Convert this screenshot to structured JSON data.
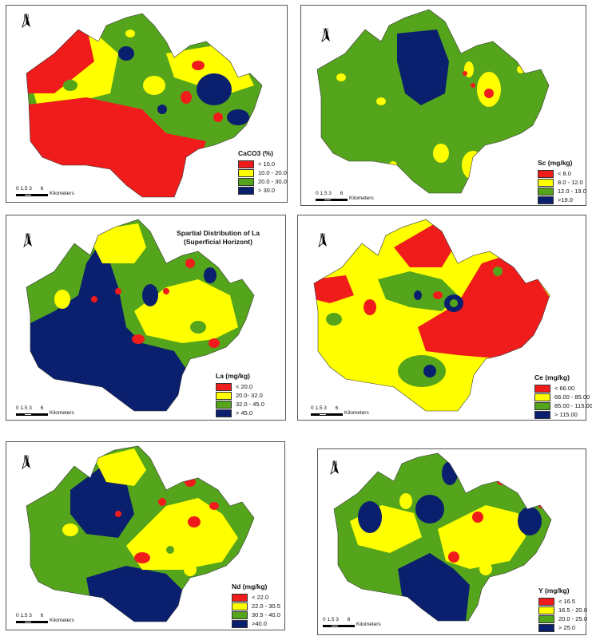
{
  "colors": {
    "red": "#f01c1c",
    "yellow": "#ffff00",
    "green": "#55a51c",
    "blue": "#0a1f6e"
  },
  "north_label": "N",
  "scale_bar": {
    "ticks": [
      "0",
      "1.5",
      "3",
      "6"
    ],
    "unit": "Kilometers"
  },
  "panels": [
    {
      "id": "caco3",
      "title": "",
      "legend_title": "CaCO3 (%)",
      "classes": [
        {
          "label": "< 10.0",
          "color": "#f01c1c"
        },
        {
          "label": "10.0 - 20.0",
          "color": "#ffff00"
        },
        {
          "label": "20.0 - 30.0",
          "color": "#55a51c"
        },
        {
          "label": "> 30.0",
          "color": "#0a1f6e"
        }
      ]
    },
    {
      "id": "sc",
      "title": "",
      "legend_title": "Sc (mg/kg)",
      "classes": [
        {
          "label": "< 8.0",
          "color": "#f01c1c"
        },
        {
          "label": "8.0 - 12.0",
          "color": "#ffff00"
        },
        {
          "label": "12.0 - 19.0",
          "color": "#55a51c"
        },
        {
          "label": ">19.0",
          "color": "#0a1f6e"
        }
      ]
    },
    {
      "id": "la",
      "title_line1": "Spartial Distribution of La",
      "title_line2": "(Superficial Horizont)",
      "legend_title": "La (mg/kg)",
      "classes": [
        {
          "label": "< 20.0",
          "color": "#f01c1c"
        },
        {
          "label": "20.0- 32.0",
          "color": "#ffff00"
        },
        {
          "label": "32.0 - 45.0",
          "color": "#55a51c"
        },
        {
          "label": "> 45.0",
          "color": "#0a1f6e"
        }
      ]
    },
    {
      "id": "ce",
      "title": "",
      "legend_title": "Ce (mg/kg)",
      "classes": [
        {
          "label": "< 66.00",
          "color": "#f01c1c"
        },
        {
          "label": "66.00 - 85.00",
          "color": "#ffff00"
        },
        {
          "label": "85.00 - 115.00",
          "color": "#55a51c"
        },
        {
          "label": "> 115.00",
          "color": "#0a1f6e"
        }
      ]
    },
    {
      "id": "nd",
      "title": "",
      "legend_title": "Nd (mg/kg)",
      "classes": [
        {
          "label": "< 22.0",
          "color": "#f01c1c"
        },
        {
          "label": "22.0 - 30.5",
          "color": "#ffff00"
        },
        {
          "label": "30.5 - 40.0",
          "color": "#55a51c"
        },
        {
          "label": ">40.0",
          "color": "#0a1f6e"
        }
      ]
    },
    {
      "id": "y",
      "title": "",
      "legend_title": "Y (mg/kg)",
      "classes": [
        {
          "label": "< 16.5",
          "color": "#f01c1c"
        },
        {
          "label": "16.5 - 20.0",
          "color": "#ffff00"
        },
        {
          "label": "20.0 - 25.0",
          "color": "#55a51c"
        },
        {
          "label": "> 25.0",
          "color": "#0a1f6e"
        }
      ]
    }
  ]
}
